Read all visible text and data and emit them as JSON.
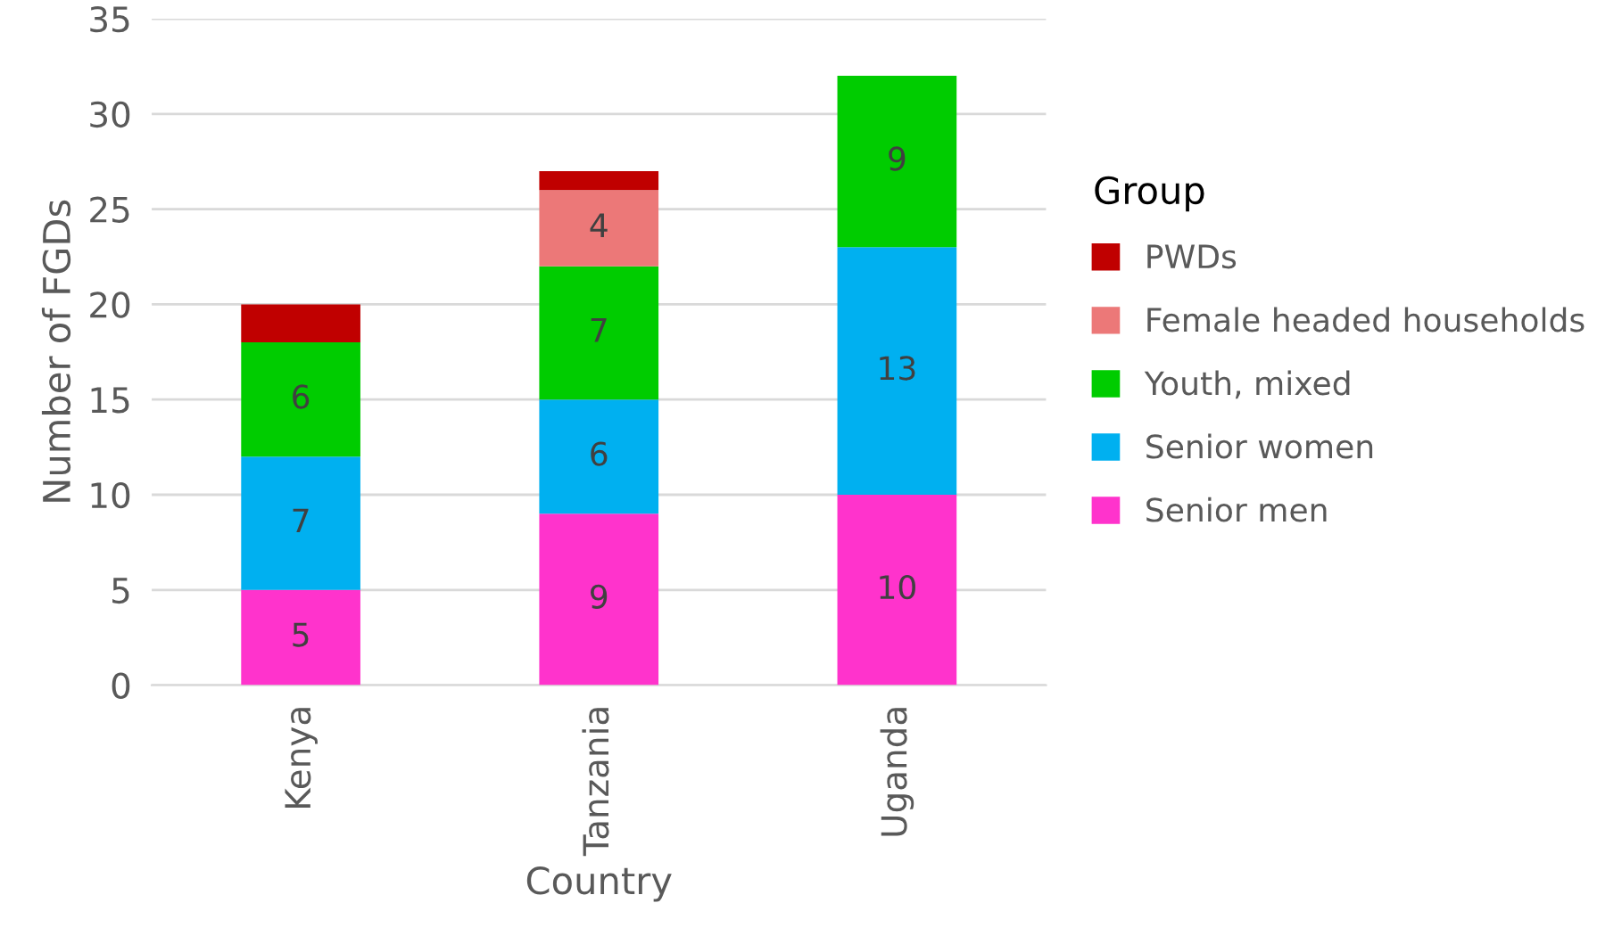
{
  "chart_data": {
    "type": "bar",
    "stacked": true,
    "xlabel": "Country",
    "ylabel": "Number of FGDs",
    "legend_title": "Group",
    "categories": [
      "Kenya",
      "Tanzania",
      "Uganda"
    ],
    "series": [
      {
        "name": "Senior men",
        "color": "#ff33cc",
        "values": [
          5,
          9,
          10
        ],
        "value_labels": [
          "5",
          "9",
          "10"
        ]
      },
      {
        "name": "Senior women",
        "color": "#00b0f0",
        "values": [
          7,
          6,
          13
        ],
        "value_labels": [
          "7",
          "6",
          "13"
        ]
      },
      {
        "name": "Youth, mixed",
        "color": "#00cc00",
        "values": [
          6,
          7,
          9
        ],
        "value_labels": [
          "6",
          "7",
          "9"
        ]
      },
      {
        "name": "Female headed households",
        "color": "#ec7878",
        "values": [
          0,
          4,
          0
        ],
        "value_labels": [
          null,
          "4",
          null
        ]
      },
      {
        "name": "PWDs",
        "color": "#c00000",
        "values": [
          2,
          1,
          0
        ],
        "value_labels": [
          null,
          null,
          null
        ]
      }
    ],
    "ylim": [
      0,
      35
    ],
    "yticks": [
      0,
      5,
      10,
      15,
      20,
      25,
      30,
      35
    ],
    "grid": "y",
    "legend": "right"
  }
}
